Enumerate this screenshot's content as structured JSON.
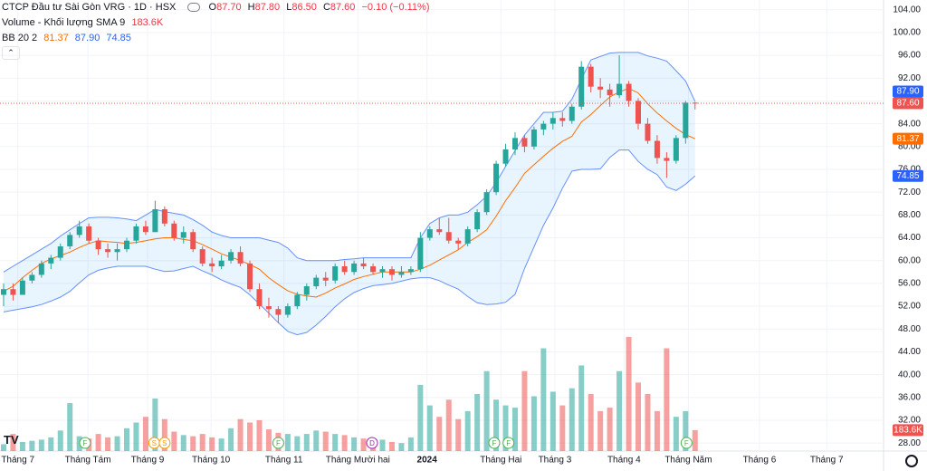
{
  "chart_data": {
    "type": "candlestick",
    "title": "CTCP Đầu tư Sài Gòn VRG · 1D · HSX",
    "ohlc_legend": [
      {
        "key": "O",
        "value": "87.70"
      },
      {
        "key": "H",
        "value": "87.80"
      },
      {
        "key": "L",
        "value": "86.50"
      },
      {
        "key": "C",
        "value": "87.60"
      }
    ],
    "change": "−0.10 (−0.11%)",
    "volume_legend": {
      "label": "Volume - Khối lượng SMA 9",
      "value": "183.6K"
    },
    "bb_legend": {
      "label": "BB 20 2",
      "values": [
        "81.37",
        "87.90",
        "74.85"
      ]
    },
    "open": [
      54,
      55,
      54,
      56.5,
      57.5,
      59.5,
      60.5,
      62.5,
      64.5,
      66,
      63.5,
      62,
      61.5,
      62,
      63.5,
      66,
      65,
      69,
      66.5,
      64,
      65,
      62,
      59.5,
      59,
      60,
      61.5,
      59.5,
      55,
      52,
      51.5,
      50.5,
      52,
      54,
      55.5,
      57,
      56.5,
      59,
      58,
      59.5,
      59,
      58,
      58.5,
      57.5,
      58,
      58.5,
      64,
      65.5,
      65,
      63.5,
      63,
      65.5,
      68.5,
      72,
      77,
      79.5,
      81.5,
      80,
      83,
      84,
      85,
      84.5,
      87,
      94,
      90.5,
      90,
      89,
      91,
      88,
      84,
      81,
      78,
      77.5,
      81.5,
      87.7
    ],
    "high": [
      56,
      56,
      57,
      58,
      60,
      61,
      63,
      65,
      67,
      66.5,
      64,
      63,
      63,
      64,
      66.5,
      67,
      70.5,
      69.5,
      67,
      66,
      65.5,
      62.5,
      60.5,
      61,
      62,
      62.5,
      60,
      56,
      53.5,
      52,
      52.5,
      54.5,
      56,
      57.5,
      58,
      59.5,
      60,
      60,
      60.5,
      59.5,
      59,
      59,
      59,
      59,
      65,
      66,
      67.5,
      67.5,
      64,
      66,
      69,
      72.5,
      77.5,
      80.5,
      82.5,
      82,
      83.5,
      84.5,
      86,
      86,
      87.5,
      95,
      94.5,
      92,
      91,
      96,
      91.5,
      88.5,
      85,
      82,
      79,
      82,
      88,
      87.8
    ],
    "low": [
      52,
      53,
      54,
      56,
      57,
      58.5,
      60,
      62,
      64,
      63,
      61,
      60.5,
      60,
      61.5,
      63,
      64.5,
      65,
      66,
      63.5,
      63,
      61.5,
      59,
      58,
      58.5,
      59.5,
      59,
      54.5,
      51.5,
      50,
      49,
      50,
      51.5,
      53,
      55,
      55.5,
      56,
      57.5,
      57.5,
      58.5,
      57.5,
      57,
      56.5,
      57,
      57.5,
      58,
      63.5,
      64.5,
      63,
      62,
      62.5,
      65,
      68,
      71.5,
      76.5,
      78.5,
      79,
      79.5,
      82,
      83,
      83.5,
      84,
      86.5,
      89.5,
      88.5,
      87,
      88.5,
      87,
      83,
      80.5,
      77,
      74.5,
      77,
      80.5,
      86.5
    ],
    "close": [
      55,
      54,
      56.5,
      57.5,
      59.5,
      60.5,
      62.5,
      64.5,
      66,
      63.5,
      62,
      61.5,
      62,
      63.5,
      66,
      65,
      69,
      66.5,
      64,
      65,
      62,
      59.5,
      59,
      60,
      61.5,
      59.5,
      55,
      52,
      51.5,
      50.5,
      52,
      54,
      55.5,
      57,
      56.5,
      59,
      58,
      59.5,
      59,
      58,
      58.5,
      57.5,
      58,
      58.5,
      64,
      65.5,
      65,
      63.5,
      63,
      65.5,
      68.5,
      72,
      77,
      79.5,
      81.5,
      80,
      83,
      84,
      85,
      84.5,
      87,
      94,
      90.5,
      90,
      89,
      91,
      88,
      84,
      81,
      78,
      77.5,
      81.5,
      87.7,
      87.6
    ],
    "volume": {
      "axis": "y2",
      "values": [
        60000,
        150000,
        80000,
        90000,
        100000,
        120000,
        180000,
        420000,
        130000,
        110000,
        150000,
        120000,
        130000,
        200000,
        250000,
        300000,
        460000,
        280000,
        170000,
        140000,
        130000,
        150000,
        120000,
        110000,
        200000,
        280000,
        250000,
        270000,
        190000,
        160000,
        150000,
        130000,
        150000,
        180000,
        170000,
        150000,
        140000,
        120000,
        110000,
        90000,
        100000,
        80000,
        70000,
        120000,
        580000,
        400000,
        300000,
        450000,
        280000,
        350000,
        500000,
        700000,
        450000,
        400000,
        380000,
        700000,
        480000,
        900000,
        520000,
        400000,
        550000,
        750000,
        500000,
        350000,
        380000,
        700000,
        1000000,
        600000,
        500000,
        350000,
        900000,
        300000,
        350000,
        183600
      ]
    },
    "bb": {
      "middle": [
        54.6,
        55.5,
        57,
        58.3,
        59.5,
        60.3,
        60.9,
        61.5,
        62.3,
        63,
        63.5,
        63.3,
        63.2,
        63,
        63.2,
        63.5,
        63.8,
        64,
        64,
        63.7,
        63.5,
        62.8,
        62,
        61.2,
        60.6,
        60,
        59.3,
        58.5,
        57,
        55.8,
        54.7,
        54.1,
        53.8,
        53.6,
        54.3,
        55.2,
        55.9,
        56.7,
        57.2,
        57.6,
        58,
        58,
        58,
        58,
        58.5,
        59.2,
        60.1,
        61,
        61.9,
        63.2,
        64.2,
        65.4,
        67.8,
        70.5,
        72.8,
        75.3,
        76.8,
        78.3,
        79.7,
        80.9,
        81.8,
        84.3,
        85.6,
        87.2,
        88.7,
        89.6,
        90.2,
        89.4,
        87.5,
        85.9,
        84.5,
        83.2,
        82.1,
        81.37
      ],
      "upper": [
        58,
        59,
        60,
        61,
        62,
        63,
        64.3,
        65.4,
        66.5,
        67.5,
        67.6,
        67.6,
        67.5,
        67.3,
        67,
        68,
        69,
        68.6,
        68.3,
        68,
        67.2,
        66.2,
        65,
        64.4,
        64,
        64,
        64,
        64,
        63.6,
        63.2,
        62.2,
        60.5,
        60,
        60,
        60,
        60,
        60.2,
        60.3,
        60.5,
        60.5,
        60.5,
        60.5,
        60.5,
        60.5,
        64,
        66.5,
        67.5,
        68,
        68,
        68.5,
        69.8,
        71.3,
        73.7,
        76.5,
        79.3,
        82,
        84,
        86,
        86,
        86.2,
        88.3,
        91.8,
        95.2,
        95.8,
        96.4,
        96.5,
        96.5,
        96.5,
        95.9,
        95.5,
        95,
        93.3,
        91.5,
        87.9
      ],
      "lower": [
        51,
        51.3,
        51.6,
        51.9,
        52.3,
        52.9,
        53.6,
        54.6,
        56.1,
        57.5,
        58.3,
        58.7,
        59,
        59,
        59,
        59,
        58.5,
        58.1,
        58.2,
        58.6,
        59,
        58.2,
        57.5,
        56.6,
        55.9,
        55.3,
        54,
        52.4,
        50.8,
        49.1,
        47.6,
        47,
        47.4,
        48.7,
        50.2,
        51.9,
        53.3,
        54.4,
        55.1,
        55.6,
        55.8,
        56,
        56.4,
        56.8,
        57,
        57,
        56.5,
        55.7,
        55,
        53.7,
        52.6,
        52.3,
        52.4,
        52.7,
        54.1,
        58.6,
        62.4,
        66.2,
        69.2,
        72.7,
        75.7,
        76,
        76,
        76.1,
        78.1,
        79.4,
        79.4,
        77.4,
        76,
        75.1,
        72.9,
        72.3,
        73.4,
        74.85
      ]
    },
    "colors": {
      "up": "#26a69a",
      "down": "#ef5350",
      "bb_upper": "#2962ff",
      "bb_middle": "#ff6d00",
      "bb_lower": "#2962ff",
      "bb_fill": "#2196f3"
    },
    "xlim": [
      -0.38,
      92.9
    ],
    "xticks": [
      {
        "value": 1.5,
        "label": "Tháng 7"
      },
      {
        "value": 8.9,
        "label": "Tháng Tám"
      },
      {
        "value": 15.2,
        "label": "Tháng 9"
      },
      {
        "value": 21.9,
        "label": "Tháng 10"
      },
      {
        "value": 29.6,
        "label": "Tháng 11"
      },
      {
        "value": 37.4,
        "label": "Tháng Mười hai"
      },
      {
        "value": 44.7,
        "label": "2024"
      },
      {
        "value": 52.5,
        "label": "Tháng Hai"
      },
      {
        "value": 58.2,
        "label": "Tháng 3"
      },
      {
        "value": 65.5,
        "label": "Tháng 4"
      },
      {
        "value": 72.3,
        "label": "Tháng Năm"
      },
      {
        "value": 79.8,
        "label": "Tháng 6"
      },
      {
        "value": 86.9,
        "label": "Tháng 7"
      }
    ],
    "ylim": [
      26.6,
      105.7
    ],
    "yticks": [
      {
        "value": 28,
        "label": "28.00"
      },
      {
        "value": 32,
        "label": "32.00"
      },
      {
        "value": 36,
        "label": "36.00"
      },
      {
        "value": 40,
        "label": "40.00"
      },
      {
        "value": 44,
        "label": "44.00"
      },
      {
        "value": 48,
        "label": "48.00"
      },
      {
        "value": 52,
        "label": "52.00"
      },
      {
        "value": 56,
        "label": "56.00"
      },
      {
        "value": 60,
        "label": "60.00"
      },
      {
        "value": 64,
        "label": "64.00"
      },
      {
        "value": 68,
        "label": "68.00"
      },
      {
        "value": 72,
        "label": "72.00"
      },
      {
        "value": 76,
        "label": "76.00"
      },
      {
        "value": 80,
        "label": "80.00"
      },
      {
        "value": 84,
        "label": "84.00"
      },
      {
        "value": 88,
        "label": "88.00"
      },
      {
        "value": 92,
        "label": "92.00"
      },
      {
        "value": 96,
        "label": "96.00"
      },
      {
        "value": 100,
        "label": "100.00"
      },
      {
        "value": 104,
        "label": "104.00"
      }
    ],
    "y2lim": [
      0,
      3950000
    ],
    "events": [
      {
        "label": "F",
        "x": 8.6
      },
      {
        "label": "S",
        "x": 15.9
      },
      {
        "label": "S",
        "x": 17.0
      },
      {
        "label": "F",
        "x": 29.0
      },
      {
        "label": "D",
        "x": 38.9
      },
      {
        "label": "F",
        "x": 51.8
      },
      {
        "label": "F",
        "x": 53.3
      },
      {
        "label": "F",
        "x": 72.1
      }
    ],
    "grid": true
  }
}
